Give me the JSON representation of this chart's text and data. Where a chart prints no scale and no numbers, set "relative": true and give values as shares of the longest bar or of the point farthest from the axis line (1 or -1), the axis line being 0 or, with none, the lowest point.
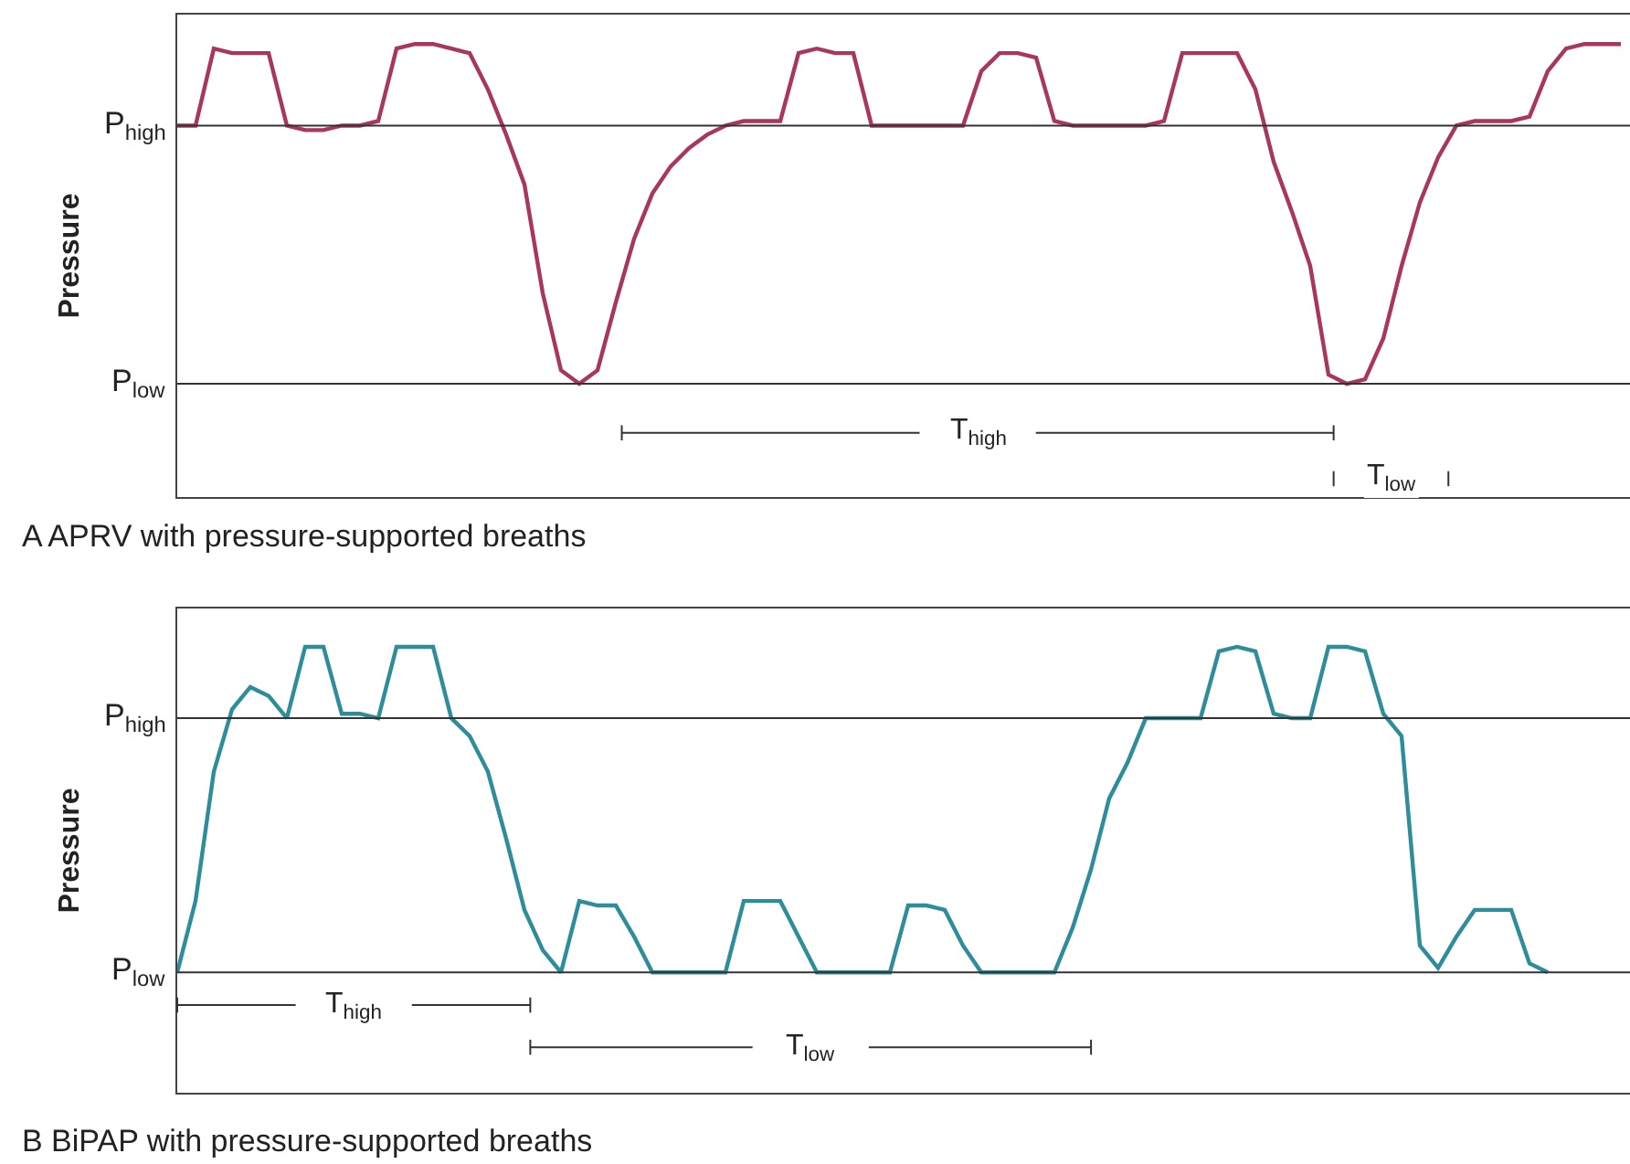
{
  "chart_data": [
    {
      "type": "line",
      "relative": true,
      "ylabel": "Pressure",
      "annotations": [
        "T$_{high}$",
        "T$_{low}$",
        "A APRV with pressure-supported breaths"
      ],
      "marker": "none",
      "line_style": "solid",
      "ref_lines": [
        {
          "axis": "y",
          "value": 0.82,
          "label": "P$_{high}$",
          "color": "#333333"
        },
        {
          "axis": "y",
          "value": 0.25,
          "label": "P$_{low}$",
          "color": "#333333"
        }
      ],
      "categories": [
        null,
        null,
        null,
        null,
        null,
        null,
        null,
        null,
        null,
        null,
        null,
        null,
        null,
        null,
        null,
        null,
        null,
        null,
        null,
        null,
        null,
        null,
        null,
        null,
        null,
        null,
        null,
        null,
        null,
        null,
        null,
        null,
        null,
        null,
        null,
        null,
        null,
        null,
        null,
        null,
        null,
        null,
        null,
        null,
        null,
        null,
        null,
        null,
        null,
        null,
        null,
        null,
        null,
        null,
        null,
        null,
        null,
        null,
        null,
        null,
        null,
        null,
        null,
        null,
        null,
        null,
        null,
        null,
        null,
        null,
        null,
        null,
        null,
        null,
        null,
        null,
        null,
        null,
        null,
        null
      ],
      "series": [
        {
          "color": "#a8375a",
          "values": [
            0.82,
            0.82,
            0.99,
            0.98,
            0.98,
            0.98,
            0.82,
            0.81,
            0.81,
            0.82,
            0.82,
            0.83,
            0.99,
            1,
            1,
            0.99,
            0.98,
            0.9,
            0.8,
            0.69,
            0.45,
            0.28,
            0.25,
            0.28,
            0.43,
            0.57,
            0.67,
            0.73,
            0.77,
            0.8,
            0.82,
            0.83,
            0.83,
            0.83,
            0.98,
            0.99,
            0.98,
            0.98,
            0.82,
            0.82,
            0.82,
            0.82,
            0.82,
            0.82,
            0.94,
            0.98,
            0.98,
            0.97,
            0.83,
            0.82,
            0.82,
            0.82,
            0.82,
            0.82,
            0.83,
            0.98,
            0.98,
            0.98,
            0.98,
            0.9,
            0.74,
            0.63,
            0.51,
            0.27,
            0.25,
            0.26,
            0.35,
            0.51,
            0.65,
            0.75,
            0.82,
            0.83,
            0.83,
            0.83,
            0.84,
            0.94,
            0.99,
            1,
            1,
            1
          ]
        }
      ]
    },
    {
      "type": "line",
      "relative": true,
      "ylabel": "Pressure",
      "annotations": [
        "T$_{high}$",
        "T$_{low}$",
        "B BiPAP with pressure-supported breaths"
      ],
      "marker": "none",
      "line_style": "solid",
      "ref_lines": [
        {
          "axis": "y",
          "value": 0.84,
          "label": "P$_{high}$",
          "color": "#333333"
        },
        {
          "axis": "y",
          "value": 0.27,
          "label": "P$_{low}$",
          "color": "#333333"
        }
      ],
      "categories": [
        null,
        null,
        null,
        null,
        null,
        null,
        null,
        null,
        null,
        null,
        null,
        null,
        null,
        null,
        null,
        null,
        null,
        null,
        null,
        null,
        null,
        null,
        null,
        null,
        null,
        null,
        null,
        null,
        null,
        null,
        null,
        null,
        null,
        null,
        null,
        null,
        null,
        null,
        null,
        null,
        null,
        null,
        null,
        null,
        null,
        null,
        null,
        null,
        null,
        null,
        null,
        null,
        null,
        null,
        null,
        null,
        null,
        null,
        null,
        null,
        null,
        null,
        null,
        null,
        null,
        null,
        null,
        null,
        null,
        null,
        null,
        null,
        null,
        null,
        null,
        null,
        null,
        null,
        null,
        null
      ],
      "series": [
        {
          "color": "#2e8d9a",
          "values": [
            0.27,
            0.43,
            0.72,
            0.86,
            0.91,
            0.89,
            0.84,
            1,
            1,
            0.85,
            0.85,
            0.84,
            1,
            1,
            1,
            0.84,
            0.8,
            0.72,
            0.57,
            0.41,
            0.32,
            0.27,
            0.43,
            0.42,
            0.42,
            0.35,
            0.27,
            0.27,
            0.27,
            0.27,
            0.27,
            0.43,
            0.43,
            0.43,
            0.35,
            0.27,
            0.27,
            0.27,
            0.27,
            0.27,
            0.42,
            0.42,
            0.41,
            0.33,
            0.27,
            0.27,
            0.27,
            0.27,
            0.27,
            0.37,
            0.5,
            0.66,
            0.74,
            0.84,
            0.84,
            0.84,
            0.84,
            0.99,
            1,
            0.99,
            0.85,
            0.84,
            0.84,
            1,
            1,
            0.99,
            0.85,
            0.8,
            0.33,
            0.28,
            0.35,
            0.41,
            0.41,
            0.41,
            0.29,
            0.27,
            null,
            null,
            null,
            null
          ]
        }
      ]
    }
  ]
}
